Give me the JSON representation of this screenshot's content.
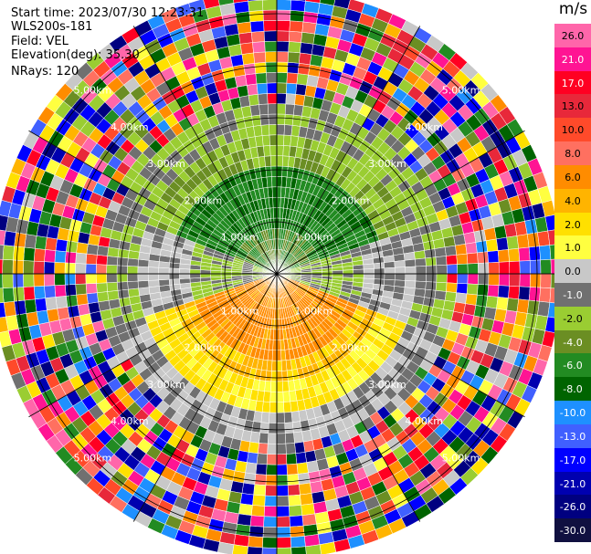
{
  "header": {
    "start_time": "Start time: 2023/07/30 12:23:31",
    "instrument": "WLS200s-181",
    "field": "Field: VEL",
    "elevation": "Elevation(deg): 35.30",
    "nrays": "NRays: 120"
  },
  "colorbar": {
    "unit": "m/s",
    "labels": [
      "26.0",
      "21.0",
      "17.0",
      "13.0",
      "10.0",
      "8.0",
      "6.0",
      "4.0",
      "2.0",
      "1.0",
      "0.0",
      "-1.0",
      "-2.0",
      "-4.0",
      "-6.0",
      "-8.0",
      "-10.0",
      "-13.0",
      "-17.0",
      "-21.0",
      "-26.0",
      "-30.0"
    ],
    "colors": [
      "#ff66aa",
      "#ff1493",
      "#ff0022",
      "#e8283a",
      "#ff4a2a",
      "#ff7060",
      "#ff8c00",
      "#ffb400",
      "#ffe000",
      "#ffff40",
      "#c8c8c8",
      "#707070",
      "#9acd32",
      "#6b8e23",
      "#228b22",
      "#006400",
      "#1e90ff",
      "#4060ff",
      "#0000ff",
      "#0000b0",
      "#000080",
      "#101040"
    ]
  },
  "range_labels": [
    "1.00km",
    "2.00km",
    "3.00km",
    "4.00km",
    "5.00km"
  ],
  "ppi": {
    "max_range_km": 5.5,
    "rings_km": [
      1,
      2,
      3,
      4,
      5
    ],
    "gate_km": 0.2,
    "n_rays": 120
  }
}
